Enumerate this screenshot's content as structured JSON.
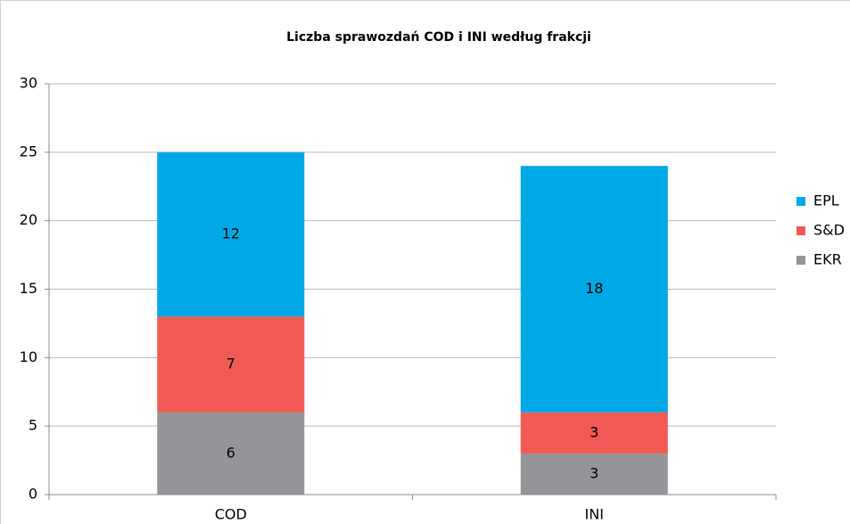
{
  "chart_data": {
    "type": "stacked_bar",
    "title": "Liczba sprawozdań COD i INI według frakcji",
    "categories": [
      "COD",
      "INI"
    ],
    "series": [
      {
        "name": "EKR",
        "color": "#939598",
        "values": [
          6,
          3
        ]
      },
      {
        "name": "S&D",
        "color": "#f15a54",
        "values": [
          7,
          3
        ]
      },
      {
        "name": "EPL",
        "color": "#00a9e6",
        "values": [
          12,
          18
        ]
      }
    ],
    "ylim": [
      0,
      30
    ],
    "yticks": [
      0,
      5,
      10,
      15,
      20,
      25,
      30
    ],
    "grid": true,
    "legend": "right"
  }
}
